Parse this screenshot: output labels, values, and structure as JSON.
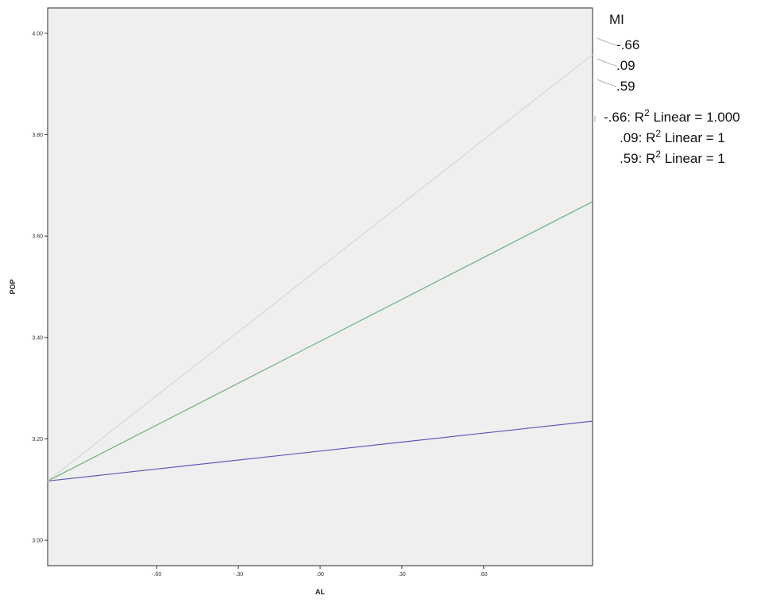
{
  "chart_data": {
    "type": "line",
    "xlabel": "AL",
    "ylabel": "POP",
    "xlim": [
      -1.0,
      1.0
    ],
    "ylim": [
      2.95,
      4.05
    ],
    "x_ticks": [
      {
        "value": -0.6,
        "label": "-.60"
      },
      {
        "value": -0.3,
        "label": "-.30"
      },
      {
        "value": 0.0,
        "label": ".00"
      },
      {
        "value": 0.3,
        "label": ".30"
      },
      {
        "value": 0.6,
        "label": ".60"
      }
    ],
    "y_ticks": [
      {
        "value": 3.0,
        "label": "3.00"
      },
      {
        "value": 3.2,
        "label": "3.20"
      },
      {
        "value": 3.4,
        "label": "3.40"
      },
      {
        "value": 3.6,
        "label": "3.60"
      },
      {
        "value": 3.8,
        "label": "3.80"
      },
      {
        "value": 4.0,
        "label": "4.00"
      }
    ],
    "grid": false,
    "legend_position": "right",
    "legend_title": "MI",
    "series": [
      {
        "name": "-.66",
        "color": "#5b5bb8",
        "x": [
          -1.0,
          1.0
        ],
        "y": [
          3.117,
          3.235
        ]
      },
      {
        "name": ".09",
        "color": "#6fb07a",
        "x": [
          -1.0,
          1.0
        ],
        "y": [
          3.117,
          3.668
        ]
      },
      {
        "name": ".59",
        "color": "#d6d6c8",
        "x": [
          -1.0,
          1.0
        ],
        "y": [
          3.117,
          3.958
        ]
      }
    ],
    "fit_labels": [
      "-.66: R² Linear = 1.000",
      ".09: R² Linear = 1",
      ".59: R² Linear = 1"
    ]
  }
}
